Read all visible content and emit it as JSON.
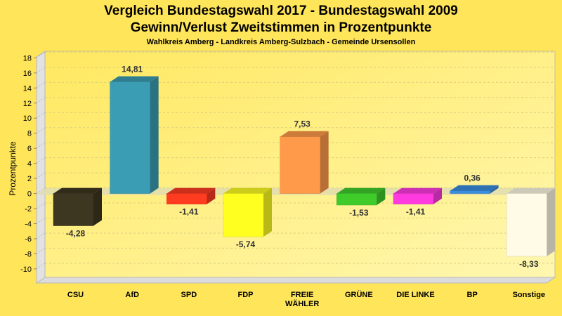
{
  "chart_data": {
    "type": "bar",
    "title": "Vergleich Bundestagswahl 2017 - Bundestagswahl 2009",
    "subtitle": "Gewinn/Verlust Zweitstimmen in Prozentpunkte",
    "subsubtitle": "Wahlkreis Amberg - Landkreis Amberg-Sulzbach - Gemeinde Ursensollen",
    "xlabel": "",
    "ylabel": "Prozentpunkte",
    "ylim": [
      -11.5,
      18.5
    ],
    "yticks": [
      18,
      16,
      14,
      12,
      10,
      8,
      6,
      4,
      2,
      0,
      -2,
      -4,
      -6,
      -8,
      -10
    ],
    "grid": true,
    "categories": [
      "CSU",
      "AfD",
      "SPD",
      "FDP",
      "FREIE WÄHLER",
      "GRÜNE",
      "DIE LINKE",
      "BP",
      "Sonstige"
    ],
    "category_lines": [
      [
        "CSU"
      ],
      [
        "AfD"
      ],
      [
        "SPD"
      ],
      [
        "FDP"
      ],
      [
        "FREIE",
        "WÄHLER"
      ],
      [
        "GRÜNE"
      ],
      [
        "DIE LINKE"
      ],
      [
        "BP"
      ],
      [
        "Sonstige"
      ]
    ],
    "values": [
      -4.28,
      14.81,
      -1.41,
      -5.74,
      7.53,
      -1.53,
      -1.41,
      0.36,
      -8.33
    ],
    "value_labels": [
      "-4,28",
      "14,81",
      "-1,41",
      "-5,74",
      "7,53",
      "-1,53",
      "-1,41",
      "0,36",
      "-8,33"
    ],
    "colors": [
      "#3d3620",
      "#3a9db3",
      "#ff3b20",
      "#ffff20",
      "#ff9a4a",
      "#3fcc2a",
      "#ff3be0",
      "#3a8ee0",
      "#fffbe6"
    ]
  }
}
